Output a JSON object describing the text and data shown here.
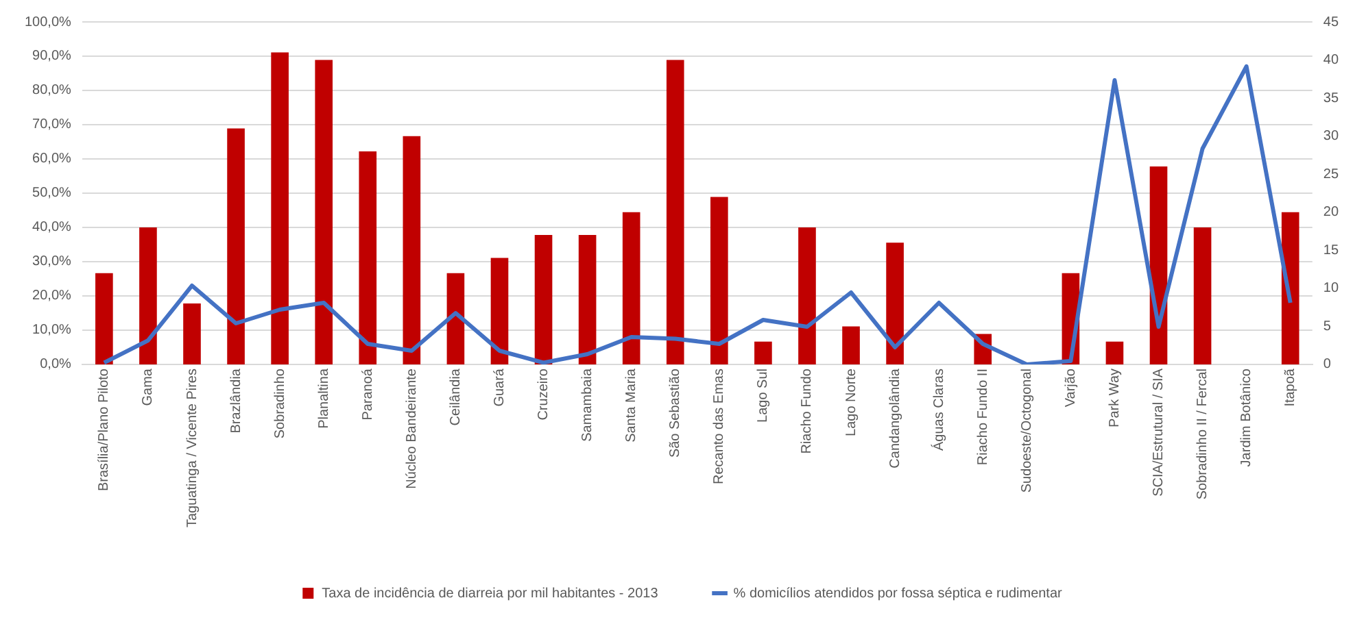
{
  "chart_data": {
    "type": "bar",
    "categories": [
      "Brasília/Plano Piloto",
      "Gama",
      "Taguatinga / Vicente Pires",
      "Brazlândia",
      "Sobradinho",
      "Planaltina",
      "Paranoá",
      "Núcleo Bandeirante",
      "Ceilândia",
      "Guará",
      "Cruzeiro",
      "Samambaia",
      "Santa Maria",
      "São Sebastião",
      "Recanto das Emas",
      "Lago Sul",
      "Riacho Fundo",
      "Lago Norte",
      "Candangolândia",
      "Águas Claras",
      "Riacho Fundo II",
      "Sudoeste/Octogonal",
      "Varjão",
      "Park Way",
      "SCIA/Estrutural / SIA",
      "Sobradinho II / Fercal",
      "Jardim Botânico",
      "Itapoã"
    ],
    "series": [
      {
        "name": "Taxa de incidência de diarreia por mil habitantes - 2013",
        "axis": "y2",
        "color": "#c00000",
        "values": [
          12,
          18,
          8,
          31,
          41,
          40,
          28,
          30,
          12,
          14,
          17,
          17,
          20,
          40,
          22,
          3,
          18,
          5,
          16,
          0,
          4,
          0,
          12,
          3,
          26,
          18,
          0,
          20
        ]
      },
      {
        "name": "% domicílios atendidos por fossa séptica e rudimentar",
        "type": "line",
        "axis": "y",
        "color": "#4472c4",
        "values": [
          0.5,
          7,
          23,
          12,
          16,
          18,
          6,
          4,
          15,
          4,
          0.5,
          3,
          8,
          7.5,
          6,
          13,
          11,
          21,
          5,
          18,
          6,
          0,
          1,
          83,
          11,
          63,
          87,
          18
        ]
      }
    ],
    "ylim": [
      0,
      100
    ],
    "yticks": [
      {
        "value": 0,
        "label": "0,0%"
      },
      {
        "value": 10,
        "label": "10,0%"
      },
      {
        "value": 20,
        "label": "20,0%"
      },
      {
        "value": 30,
        "label": "30,0%"
      },
      {
        "value": 40,
        "label": "40,0%"
      },
      {
        "value": 50,
        "label": "50,0%"
      },
      {
        "value": 60,
        "label": "60,0%"
      },
      {
        "value": 70,
        "label": "70,0%"
      },
      {
        "value": 80,
        "label": "80,0%"
      },
      {
        "value": 90,
        "label": "90,0%"
      },
      {
        "value": 100,
        "label": "100,0%"
      }
    ],
    "y2lim": [
      0,
      45
    ],
    "y2ticks": [
      0,
      5,
      10,
      15,
      20,
      25,
      30,
      35,
      40,
      45
    ],
    "grid": "y",
    "legend": "bottom",
    "marker": "none",
    "line_style": "solid"
  }
}
